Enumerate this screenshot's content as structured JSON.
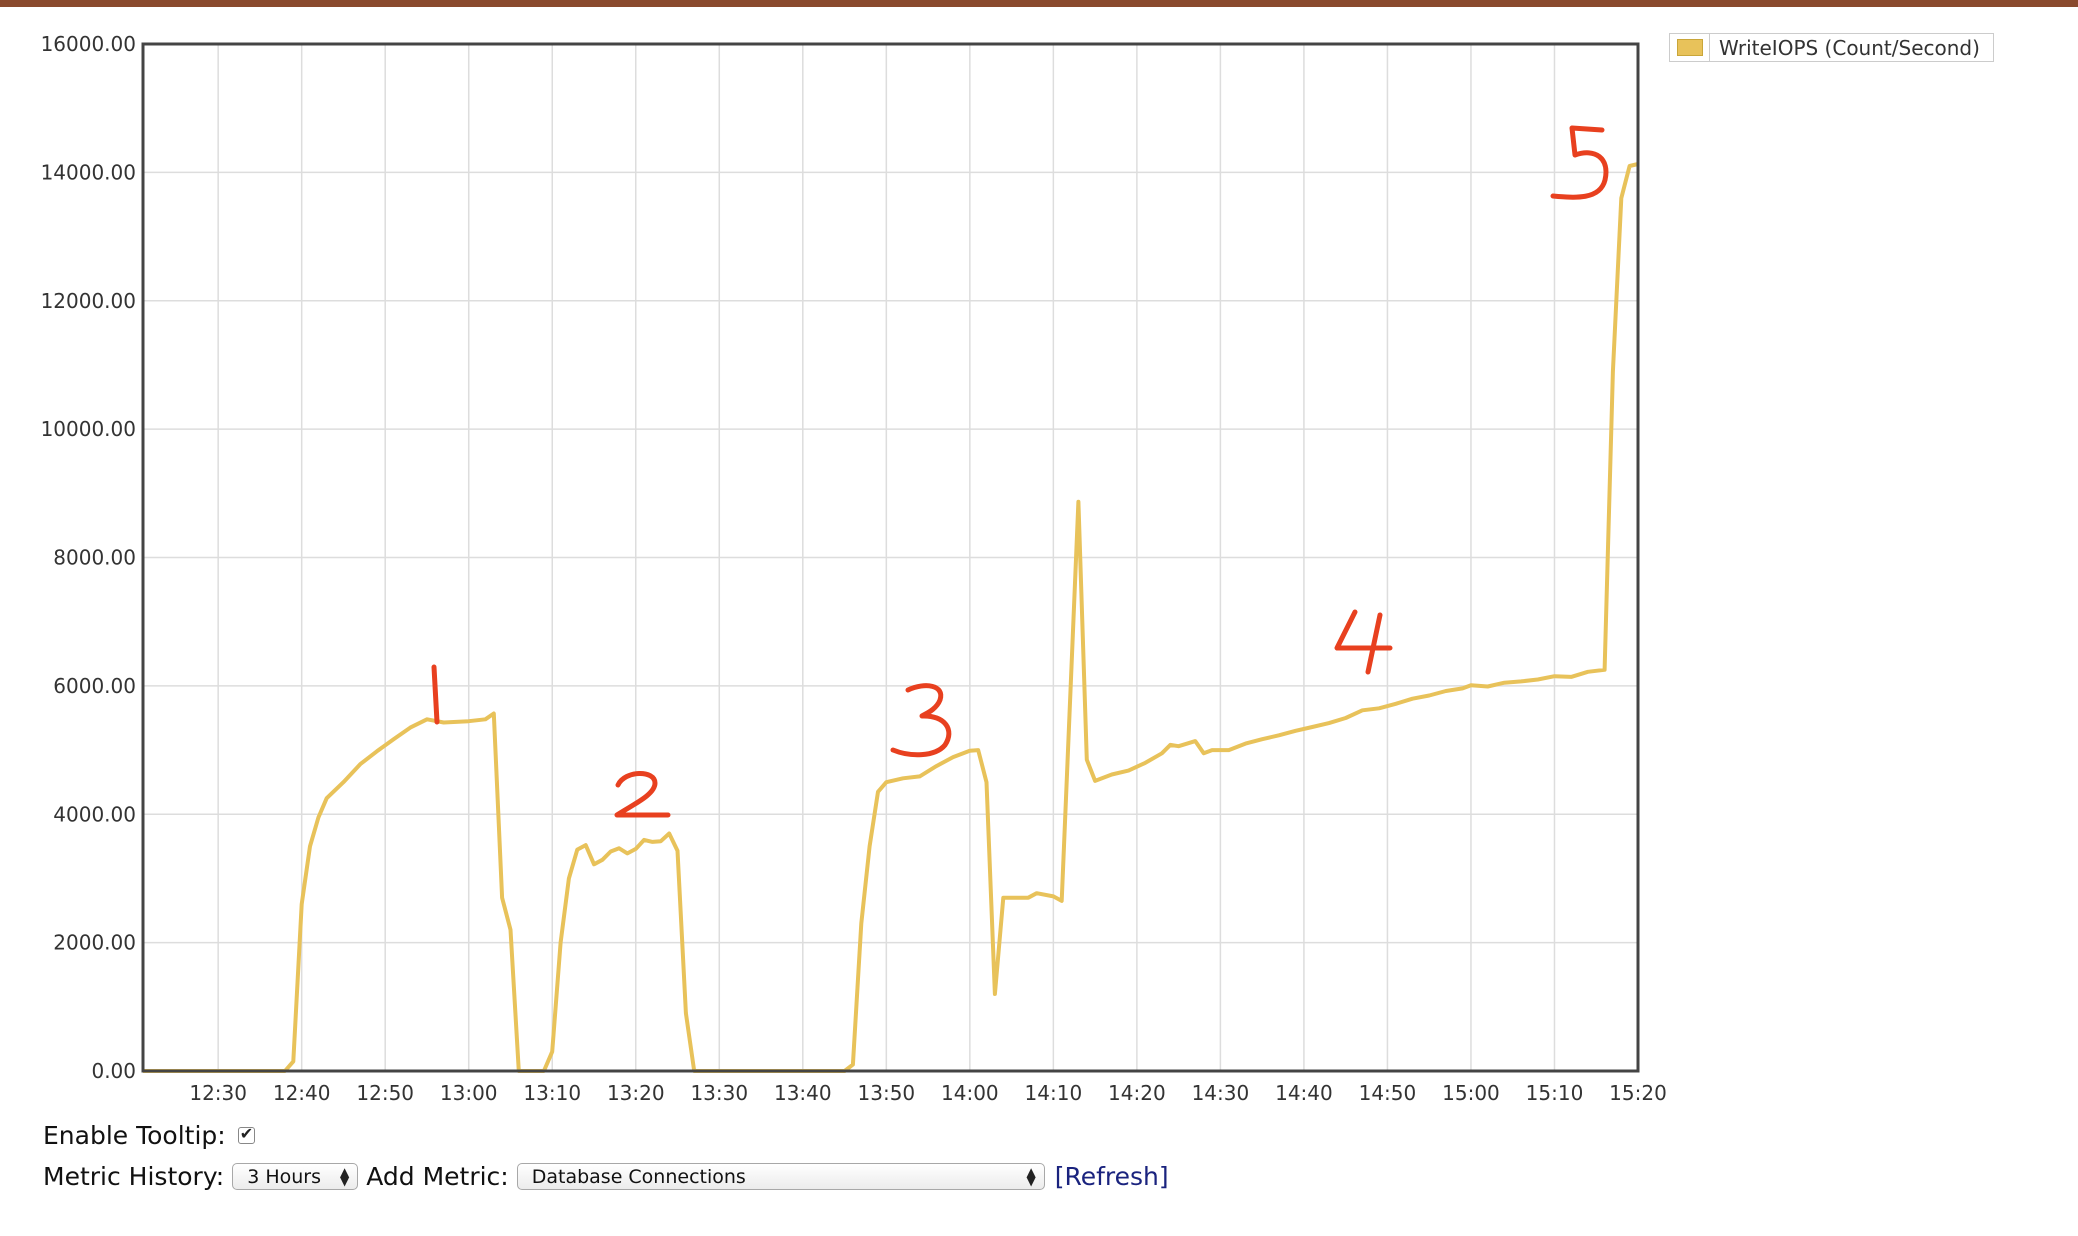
{
  "chart_data": {
    "type": "line",
    "title": "",
    "xlabel": "",
    "ylabel": "",
    "ylim": [
      0,
      16000
    ],
    "xlim": [
      "12:21",
      "15:20"
    ],
    "x_ticks": [
      "12:30",
      "12:40",
      "12:50",
      "13:00",
      "13:10",
      "13:20",
      "13:30",
      "13:40",
      "13:50",
      "14:00",
      "14:10",
      "14:20",
      "14:30",
      "14:40",
      "14:50",
      "15:00",
      "15:10",
      "15:20"
    ],
    "y_ticks": [
      "0.00",
      "2000.00",
      "4000.00",
      "6000.00",
      "8000.00",
      "10000.00",
      "12000.00",
      "14000.00",
      "16000.00"
    ],
    "grid": true,
    "legend_position": "top-right",
    "series": [
      {
        "name": "WriteIOPS (Count/Second)",
        "color": "#e8c25a",
        "points": [
          [
            "12:21",
            0
          ],
          [
            "12:30",
            0
          ],
          [
            "12:38",
            0
          ],
          [
            "12:39",
            150
          ],
          [
            "12:40",
            2600
          ],
          [
            "12:41",
            3500
          ],
          [
            "12:42",
            3950
          ],
          [
            "12:43",
            4250
          ],
          [
            "12:45",
            4500
          ],
          [
            "12:47",
            4780
          ],
          [
            "12:49",
            4980
          ],
          [
            "12:51",
            5170
          ],
          [
            "12:53",
            5350
          ],
          [
            "12:55",
            5480
          ],
          [
            "12:57",
            5430
          ],
          [
            "13:00",
            5450
          ],
          [
            "13:02",
            5480
          ],
          [
            "13:03",
            5570
          ],
          [
            "13:04",
            2700
          ],
          [
            "13:05",
            2200
          ],
          [
            "13:06",
            0
          ],
          [
            "13:08",
            0
          ],
          [
            "13:09",
            0
          ],
          [
            "13:10",
            300
          ],
          [
            "13:11",
            2000
          ],
          [
            "13:12",
            3000
          ],
          [
            "13:13",
            3450
          ],
          [
            "13:14",
            3520
          ],
          [
            "13:15",
            3220
          ],
          [
            "13:16",
            3290
          ],
          [
            "13:17",
            3420
          ],
          [
            "13:18",
            3470
          ],
          [
            "13:19",
            3390
          ],
          [
            "13:20",
            3460
          ],
          [
            "13:21",
            3600
          ],
          [
            "13:22",
            3570
          ],
          [
            "13:23",
            3580
          ],
          [
            "13:24",
            3700
          ],
          [
            "13:25",
            3430
          ],
          [
            "13:26",
            900
          ],
          [
            "13:27",
            0
          ],
          [
            "13:35",
            0
          ],
          [
            "13:45",
            0
          ],
          [
            "13:46",
            100
          ],
          [
            "13:47",
            2300
          ],
          [
            "13:48",
            3500
          ],
          [
            "13:49",
            4350
          ],
          [
            "13:50",
            4500
          ],
          [
            "13:52",
            4560
          ],
          [
            "13:54",
            4590
          ],
          [
            "13:56",
            4750
          ],
          [
            "13:58",
            4890
          ],
          [
            "14:00",
            4990
          ],
          [
            "14:01",
            5000
          ],
          [
            "14:02",
            4500
          ],
          [
            "14:03",
            1200
          ],
          [
            "14:04",
            2700
          ],
          [
            "14:07",
            2700
          ],
          [
            "14:08",
            2770
          ],
          [
            "14:10",
            2720
          ],
          [
            "14:11",
            2650
          ],
          [
            "14:13",
            8870
          ],
          [
            "14:14",
            4850
          ],
          [
            "14:15",
            4520
          ],
          [
            "14:17",
            4620
          ],
          [
            "14:19",
            4680
          ],
          [
            "14:21",
            4800
          ],
          [
            "14:23",
            4950
          ],
          [
            "14:24",
            5080
          ],
          [
            "14:25",
            5060
          ],
          [
            "14:27",
            5140
          ],
          [
            "14:28",
            4950
          ],
          [
            "14:29",
            5000
          ],
          [
            "14:31",
            5000
          ],
          [
            "14:33",
            5100
          ],
          [
            "14:35",
            5170
          ],
          [
            "14:37",
            5230
          ],
          [
            "14:39",
            5300
          ],
          [
            "14:41",
            5360
          ],
          [
            "14:43",
            5420
          ],
          [
            "14:45",
            5500
          ],
          [
            "14:47",
            5620
          ],
          [
            "14:49",
            5650
          ],
          [
            "14:51",
            5720
          ],
          [
            "14:53",
            5800
          ],
          [
            "14:55",
            5850
          ],
          [
            "14:57",
            5920
          ],
          [
            "14:59",
            5960
          ],
          [
            "15:00",
            6010
          ],
          [
            "15:02",
            5990
          ],
          [
            "15:04",
            6050
          ],
          [
            "15:06",
            6070
          ],
          [
            "15:08",
            6100
          ],
          [
            "15:10",
            6150
          ],
          [
            "15:12",
            6140
          ],
          [
            "15:14",
            6220
          ],
          [
            "15:16",
            6250
          ],
          [
            "15:17",
            10900
          ],
          [
            "15:18",
            13600
          ],
          [
            "15:19",
            14100
          ],
          [
            "15:20",
            14130
          ]
        ]
      }
    ],
    "annotations": [
      "1",
      "2",
      "3",
      "4",
      "5"
    ]
  },
  "controls": {
    "enable_tooltip_label": "Enable Tooltip:",
    "enable_tooltip_checked": true,
    "metric_history_label": "Metric History:",
    "metric_history_value": "3 Hours",
    "add_metric_label": "Add Metric:",
    "add_metric_value": "Database Connections",
    "refresh_label": "[Refresh]"
  }
}
